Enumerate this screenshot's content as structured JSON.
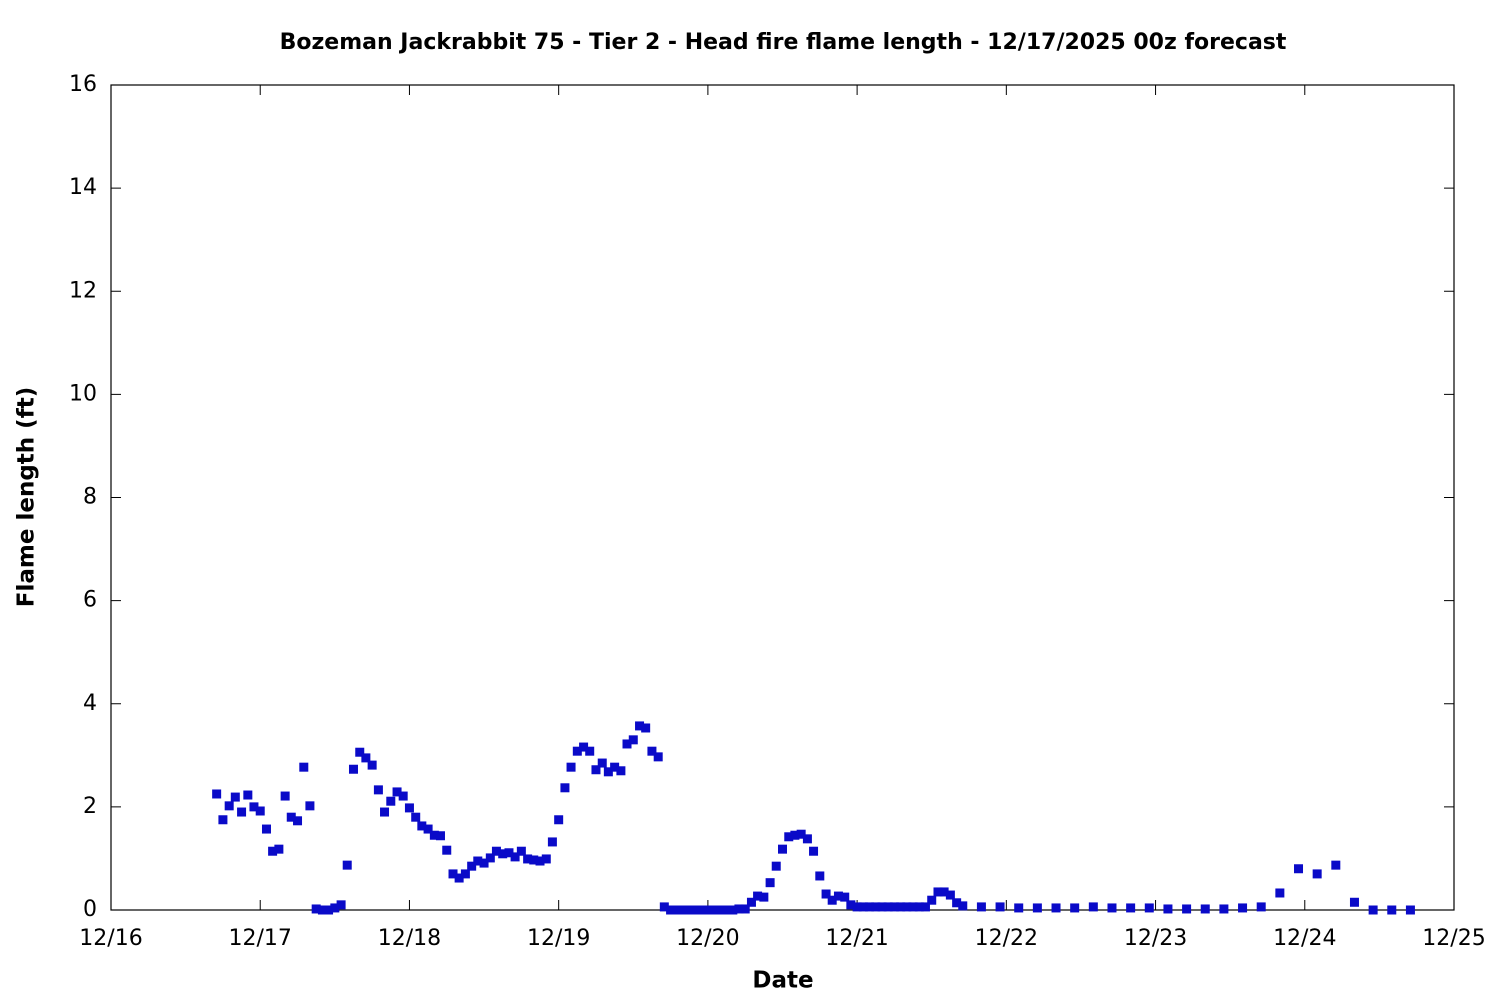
{
  "chart_data": {
    "type": "scatter",
    "title": "Bozeman Jackrabbit 75 - Tier 2 - Head fire flame length - 12/17/2025 00z forecast",
    "xlabel": "Date",
    "ylabel": "Flame length (ft)",
    "color": "#0a0ac8",
    "xlim": [
      16,
      25
    ],
    "xticks": [
      {
        "value": 16,
        "label": "12/16"
      },
      {
        "value": 17,
        "label": "12/17"
      },
      {
        "value": 18,
        "label": "12/18"
      },
      {
        "value": 19,
        "label": "12/19"
      },
      {
        "value": 20,
        "label": "12/20"
      },
      {
        "value": 21,
        "label": "12/21"
      },
      {
        "value": 22,
        "label": "12/22"
      },
      {
        "value": 23,
        "label": "12/23"
      },
      {
        "value": 24,
        "label": "12/24"
      },
      {
        "value": 25,
        "label": "12/25"
      }
    ],
    "ylim": [
      0,
      16
    ],
    "yticks": [
      0,
      2,
      4,
      6,
      8,
      10,
      12,
      14,
      16
    ],
    "x": [
      16.708,
      16.75,
      16.792,
      16.833,
      16.875,
      16.917,
      16.958,
      17,
      17.042,
      17.083,
      17.125,
      17.167,
      17.208,
      17.25,
      17.292,
      17.333,
      17.375,
      17.417,
      17.458,
      17.5,
      17.542,
      17.583,
      17.625,
      17.667,
      17.708,
      17.75,
      17.792,
      17.833,
      17.875,
      17.917,
      17.958,
      18,
      18.042,
      18.083,
      18.125,
      18.167,
      18.208,
      18.25,
      18.292,
      18.333,
      18.375,
      18.417,
      18.458,
      18.5,
      18.542,
      18.583,
      18.625,
      18.667,
      18.708,
      18.75,
      18.792,
      18.833,
      18.875,
      18.917,
      18.958,
      19,
      19.042,
      19.083,
      19.125,
      19.167,
      19.208,
      19.25,
      19.292,
      19.333,
      19.375,
      19.417,
      19.458,
      19.5,
      19.542,
      19.583,
      19.625,
      19.667,
      19.708,
      19.75,
      19.792,
      19.833,
      19.875,
      19.917,
      19.958,
      20,
      20.042,
      20.083,
      20.125,
      20.167,
      20.208,
      20.25,
      20.292,
      20.333,
      20.375,
      20.417,
      20.458,
      20.5,
      20.542,
      20.583,
      20.625,
      20.667,
      20.708,
      20.75,
      20.792,
      20.833,
      20.875,
      20.917,
      20.958,
      21,
      21.042,
      21.083,
      21.125,
      21.167,
      21.208,
      21.25,
      21.292,
      21.333,
      21.375,
      21.417,
      21.458,
      21.5,
      21.542,
      21.583,
      21.625,
      21.667,
      21.708,
      21.833,
      21.958,
      22.083,
      22.208,
      22.333,
      22.458,
      22.583,
      22.708,
      22.833,
      22.958,
      23.083,
      23.208,
      23.333,
      23.458,
      23.583,
      23.708,
      23.833,
      23.958,
      24.083,
      24.208,
      24.333,
      24.458,
      24.583,
      24.708
    ],
    "values": [
      2.25,
      1.75,
      2.02,
      2.19,
      1.9,
      2.23,
      2.0,
      1.92,
      1.57,
      1.14,
      1.18,
      2.21,
      1.8,
      1.73,
      2.77,
      2.02,
      0.02,
      0.0,
      0.0,
      0.04,
      0.1,
      0.87,
      2.73,
      3.06,
      2.95,
      2.81,
      2.33,
      1.9,
      2.11,
      2.29,
      2.21,
      1.98,
      1.8,
      1.63,
      1.57,
      1.45,
      1.44,
      1.16,
      0.7,
      0.62,
      0.7,
      0.85,
      0.95,
      0.91,
      1.01,
      1.14,
      1.09,
      1.11,
      1.03,
      1.14,
      0.99,
      0.97,
      0.95,
      0.99,
      1.32,
      1.75,
      2.37,
      2.77,
      3.08,
      3.16,
      3.08,
      2.72,
      2.85,
      2.68,
      2.77,
      2.7,
      3.22,
      3.3,
      3.57,
      3.53,
      3.08,
      2.97,
      0.06,
      0.0,
      0.0,
      0.0,
      0.0,
      0.0,
      0.0,
      0.0,
      0.0,
      0.0,
      0.0,
      0.0,
      0.02,
      0.02,
      0.15,
      0.27,
      0.25,
      0.53,
      0.85,
      1.18,
      1.42,
      1.45,
      1.47,
      1.38,
      1.14,
      0.66,
      0.31,
      0.19,
      0.27,
      0.25,
      0.1,
      0.06,
      0.06,
      0.06,
      0.06,
      0.06,
      0.06,
      0.06,
      0.06,
      0.06,
      0.06,
      0.06,
      0.06,
      0.19,
      0.35,
      0.35,
      0.29,
      0.14,
      0.08,
      0.06,
      0.06,
      0.04,
      0.04,
      0.04,
      0.04,
      0.06,
      0.04,
      0.04,
      0.04,
      0.02,
      0.02,
      0.02,
      0.02,
      0.04,
      0.06,
      0.33,
      0.8,
      0.7,
      0.87,
      0.15,
      0.0,
      0.0,
      0.0
    ]
  }
}
